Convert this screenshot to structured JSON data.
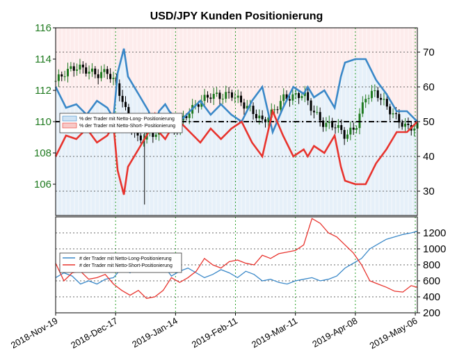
{
  "chart_data": [
    {
      "type": "line",
      "title": "USD/JPY Kunden Positionierung",
      "x_tick_labels": [
        "2018-Nov-19",
        "2018-Dec-17",
        "2019-Jan-14",
        "2019-Feb-11",
        "2019-Mar-11",
        "2019-Apr-08",
        "2019-May-06"
      ],
      "price_axis": {
        "ylim": [
          104,
          116
        ],
        "ticks": [
          "106",
          "108",
          "110",
          "112",
          "114",
          "116"
        ],
        "color": "#1f7a1f"
      },
      "pct_axis": {
        "ylim": [
          23,
          77
        ],
        "ticks": [
          "30",
          "40",
          "50",
          "60",
          "70"
        ]
      },
      "reference_line": 50,
      "legend": [
        "% der Trader mit Netto-Long- Positionierung",
        "% der Trader mit Netto-Short- Positionierung"
      ],
      "legend_position": "upper-left",
      "x": [
        0,
        5,
        10,
        15,
        20,
        25,
        28,
        30,
        33,
        35,
        40,
        45,
        48,
        50,
        53,
        55,
        58,
        60,
        65,
        70,
        75,
        80,
        85,
        90,
        95,
        100,
        105,
        110,
        115,
        120,
        122,
        125,
        130,
        135,
        138,
        140,
        145,
        150,
        155,
        160,
        165,
        170,
        175
      ],
      "price": [
        112.6,
        113.2,
        113.5,
        113.3,
        113.0,
        113.2,
        112.6,
        112.2,
        111.1,
        110.1,
        108.8,
        109.3,
        109.2,
        109.5,
        110.0,
        110.1,
        109.5,
        109.9,
        110.7,
        111.3,
        111.7,
        111.6,
        111.8,
        111.2,
        110.7,
        110.0,
        110.6,
        111.5,
        111.6,
        111.8,
        111.3,
        110.6,
        109.8,
        109.8,
        109.4,
        109.1,
        109.6,
        111.6,
        111.9,
        111.0,
        110.2,
        109.6,
        109.7
      ],
      "series": [
        {
          "name": "% der Trader mit Netto-Long- Positionierung",
          "color": "#3a88c8",
          "values": [
            60,
            54,
            55,
            52,
            56,
            54,
            51,
            64,
            71,
            63,
            58,
            53,
            48,
            53,
            55,
            53,
            51,
            50,
            53,
            56,
            52,
            55,
            52,
            50,
            56,
            60,
            47,
            54,
            60,
            58,
            60,
            57,
            59,
            54,
            63,
            67,
            68,
            68,
            62,
            58,
            53,
            53,
            50
          ]
        },
        {
          "name": "% der Trader mit Netto-Short- Positionierung",
          "color": "#e8332d",
          "values": [
            40,
            46,
            45,
            48,
            44,
            46,
            49,
            36,
            29,
            37,
            42,
            47,
            52,
            47,
            45,
            47,
            49,
            50,
            47,
            44,
            48,
            45,
            48,
            50,
            44,
            40,
            53,
            46,
            40,
            42,
            40,
            43,
            41,
            46,
            37,
            33,
            32,
            32,
            38,
            42,
            47,
            47,
            50
          ]
        }
      ]
    },
    {
      "type": "line",
      "ylim": [
        200,
        1400
      ],
      "yticks": [
        "200",
        "400",
        "600",
        "800",
        "1000",
        "1200"
      ],
      "x_tick_labels": [
        "2018-Nov-19",
        "2018-Dec-17",
        "2019-Jan-14",
        "2019-Feb-11",
        "2019-Mar-11",
        "2019-Apr-08",
        "2019-May-06"
      ],
      "legend": [
        "# der Trader mit Netto-Long-Positionierung",
        "# der Trader mit Netto-Short-Positionierung"
      ],
      "legend_position": "upper-left",
      "x": [
        0,
        4,
        8,
        12,
        16,
        20,
        24,
        28,
        32,
        36,
        40,
        44,
        48,
        52,
        56,
        60,
        64,
        68,
        72,
        76,
        80,
        84,
        88,
        92,
        96,
        100,
        104,
        108,
        112,
        116,
        120,
        124,
        128,
        132,
        136,
        140,
        144,
        148,
        152,
        156,
        160,
        164,
        168,
        172,
        175
      ],
      "series": [
        {
          "name": "# der Trader mit Netto-Long-Positionierung",
          "color": "#3a88c8",
          "values": [
            640,
            700,
            660,
            560,
            600,
            560,
            620,
            640,
            760,
            700,
            820,
            720,
            780,
            800,
            660,
            720,
            760,
            700,
            640,
            680,
            740,
            700,
            640,
            720,
            680,
            600,
            620,
            580,
            560,
            600,
            620,
            640,
            600,
            620,
            660,
            760,
            820,
            880,
            1000,
            1060,
            1120,
            1150,
            1180,
            1200,
            1220
          ]
        },
        {
          "name": "# der Trader mit Netto-Short-Positionierung",
          "color": "#e8332d",
          "values": [
            820,
            600,
            700,
            720,
            620,
            640,
            680,
            560,
            480,
            420,
            480,
            380,
            400,
            480,
            640,
            580,
            640,
            720,
            880,
            800,
            760,
            840,
            860,
            820,
            800,
            920,
            880,
            940,
            960,
            980,
            1050,
            1380,
            1320,
            1200,
            1150,
            1050,
            950,
            800,
            600,
            560,
            520,
            470,
            460,
            540,
            520
          ]
        }
      ]
    }
  ]
}
